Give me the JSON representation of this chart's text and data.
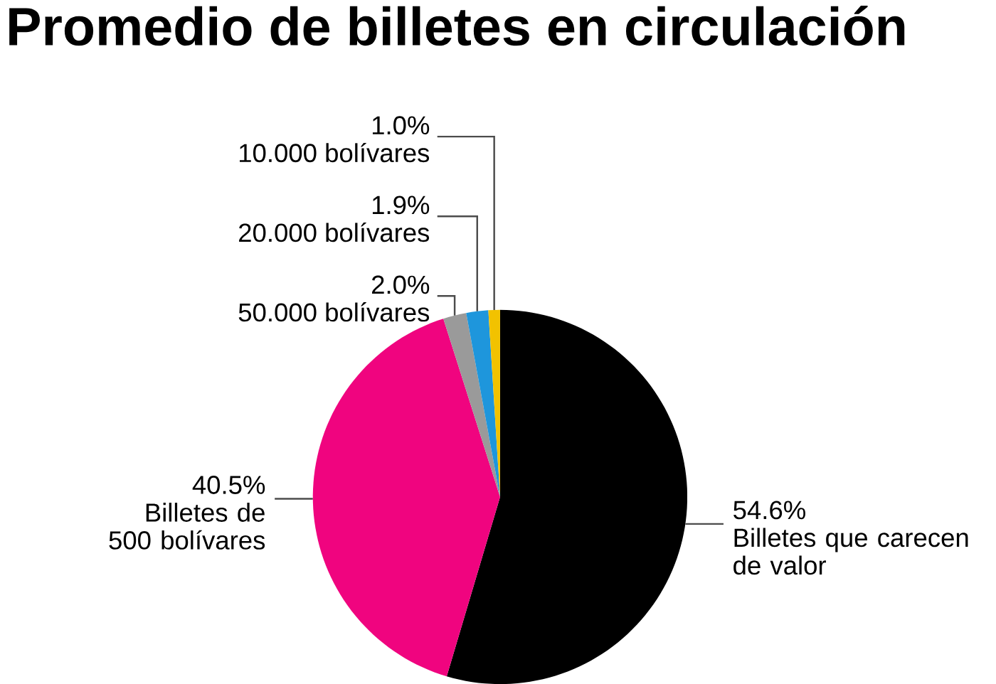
{
  "chart_data": {
    "type": "pie",
    "title": "Promedio de billetes en circulación",
    "categories": [
      "Billetes que carecen de valor",
      "Billetes de 500 bolívares",
      "50.000 bolívares",
      "20.000 bolívares",
      "10.000 bolívares"
    ],
    "values": [
      54.6,
      40.5,
      2.0,
      1.9,
      1.0
    ],
    "value_labels": [
      "54.6%",
      "40.5%",
      "2.0%",
      "1.9%",
      "1.0%"
    ],
    "colors": [
      "#000000",
      "#f0047f",
      "#9a9a9a",
      "#1e96dc",
      "#f2c200"
    ]
  }
}
